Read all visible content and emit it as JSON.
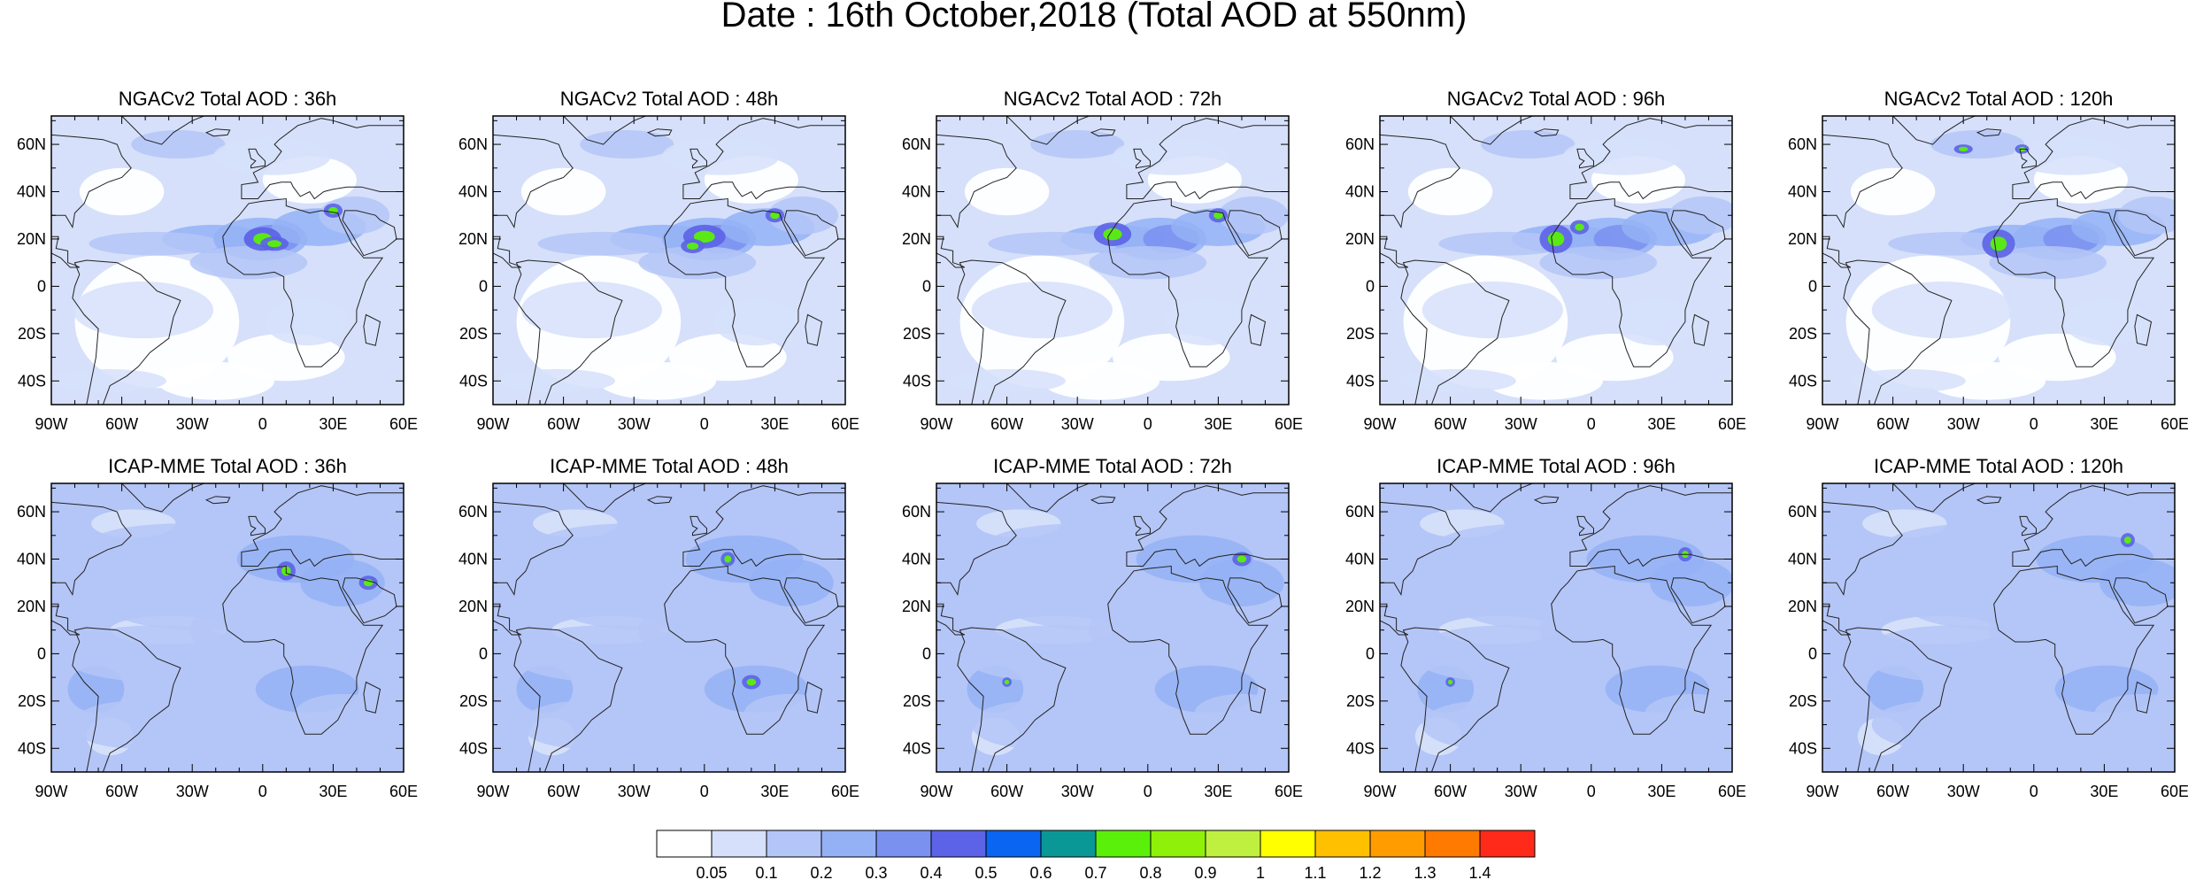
{
  "figure": {
    "title": "Date : 16th October,2018 (Total AOD at 550nm)"
  },
  "axes": {
    "lon_ticks": [
      "90W",
      "60W",
      "30W",
      "0",
      "30E",
      "60E"
    ],
    "lat_ticks": [
      "60N",
      "40N",
      "20N",
      "0",
      "20S",
      "40S"
    ],
    "lon_range": [
      -90,
      60
    ],
    "lat_range": [
      -50,
      72
    ]
  },
  "panels": [
    {
      "title": "NGACv2 Total AOD : 36h"
    },
    {
      "title": "NGACv2 Total AOD : 48h"
    },
    {
      "title": "NGACv2 Total AOD : 72h"
    },
    {
      "title": "NGACv2 Total AOD : 96h"
    },
    {
      "title": "NGACv2 Total AOD : 120h"
    },
    {
      "title": "ICAP-MME Total AOD : 36h"
    },
    {
      "title": "ICAP-MME Total AOD : 48h"
    },
    {
      "title": "ICAP-MME Total AOD : 72h"
    },
    {
      "title": "ICAP-MME Total AOD : 96h"
    },
    {
      "title": "ICAP-MME Total AOD : 120h"
    }
  ],
  "colorbar": {
    "labels": [
      "0.05",
      "0.1",
      "0.2",
      "0.3",
      "0.4",
      "0.5",
      "0.6",
      "0.7",
      "0.8",
      "0.9",
      "1",
      "1.1",
      "1.2",
      "1.3",
      "1.4"
    ],
    "colors": [
      "#ffffff",
      "#d6e0fa",
      "#b4c5f7",
      "#94b1f6",
      "#7a91f0",
      "#5c63e6",
      "#0a65f0",
      "#0a9897",
      "#5af00a",
      "#8ff00a",
      "#bff040",
      "#ffff00",
      "#ffc000",
      "#ff9c00",
      "#ff7a00",
      "#ff2a1a"
    ]
  }
}
